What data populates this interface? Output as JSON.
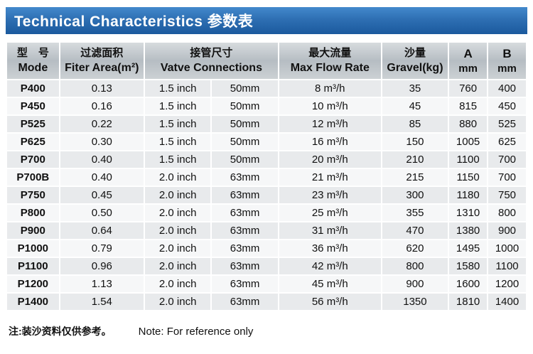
{
  "title": "Technical Characteristics 参数表",
  "table": {
    "headers": {
      "model_zh": "型　号",
      "model_en": "Mode",
      "area_zh": "过滤面积",
      "area_en": "Fiter Area(m²)",
      "conn_zh": "接管尺寸",
      "conn_en": "Vatve Connections",
      "flow_zh": "最大流量",
      "flow_en": "Max Flow Rate",
      "gravel_zh": "沙量",
      "gravel_en": "Gravel(kg)",
      "a_letter": "A",
      "a_unit": "mm",
      "b_letter": "B",
      "b_unit": "mm"
    },
    "column_names": [
      "model-cell",
      "area-cell",
      "inch-cell",
      "mm-cell",
      "flow-cell",
      "gravel-cell",
      "a-cell",
      "b-cell"
    ],
    "rows": [
      [
        "P400",
        "0.13",
        "1.5 inch",
        "50mm",
        "8 m³/h",
        "35",
        "760",
        "400"
      ],
      [
        "P450",
        "0.16",
        "1.5 inch",
        "50mm",
        "10 m³/h",
        "45",
        "815",
        "450"
      ],
      [
        "P525",
        "0.22",
        "1.5 inch",
        "50mm",
        "12 m³/h",
        "85",
        "880",
        "525"
      ],
      [
        "P625",
        "0.30",
        "1.5 inch",
        "50mm",
        "16 m³/h",
        "150",
        "1005",
        "625"
      ],
      [
        "P700",
        "0.40",
        "1.5 inch",
        "50mm",
        "20 m³/h",
        "210",
        "1100",
        "700"
      ],
      [
        "P700B",
        "0.40",
        "2.0 inch",
        "63mm",
        "21 m³/h",
        "215",
        "1150",
        "700"
      ],
      [
        "P750",
        "0.45",
        "2.0 inch",
        "63mm",
        "23 m³/h",
        "300",
        "1180",
        "750"
      ],
      [
        "P800",
        "0.50",
        "2.0 inch",
        "63mm",
        "25 m³/h",
        "355",
        "1310",
        "800"
      ],
      [
        "P900",
        "0.64",
        "2.0 inch",
        "63mm",
        "31 m³/h",
        "470",
        "1380",
        "900"
      ],
      [
        "P1000",
        "0.79",
        "2.0 inch",
        "63mm",
        "36 m³/h",
        "620",
        "1495",
        "1000"
      ],
      [
        "P1100",
        "0.96",
        "2.0 inch",
        "63mm",
        "42 m³/h",
        "800",
        "1580",
        "1100"
      ],
      [
        "P1200",
        "1.13",
        "2.0 inch",
        "63mm",
        "45 m³/h",
        "900",
        "1600",
        "1200"
      ],
      [
        "P1400",
        "1.54",
        "2.0 inch",
        "63mm",
        "56 m³/h",
        "1350",
        "1810",
        "1400"
      ]
    ]
  },
  "footer": {
    "note_zh": "注:装沙资料仅供参考。",
    "note_en": "Note: For reference only"
  }
}
